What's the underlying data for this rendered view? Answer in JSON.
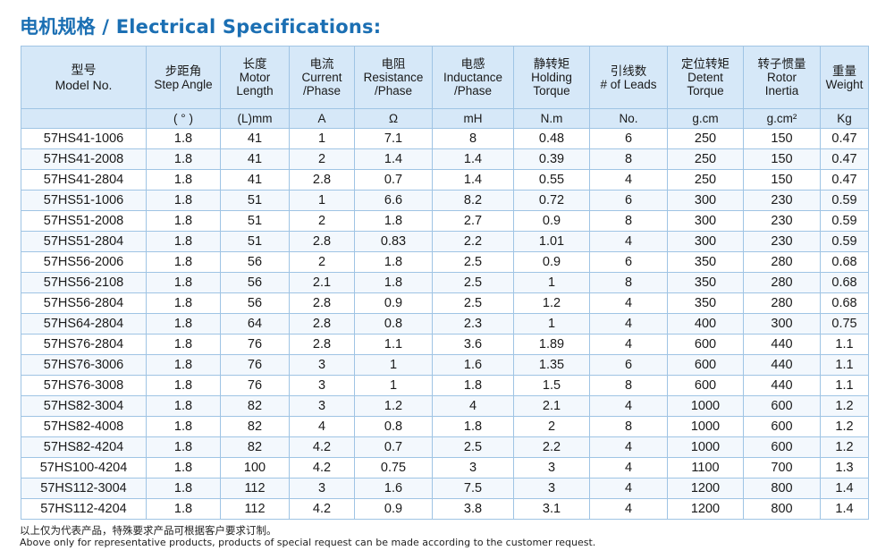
{
  "title": "电机规格 / Electrical Specifications:",
  "columns": [
    {
      "zh": "型号",
      "en1": "Model No.",
      "en2": "",
      "unit": ""
    },
    {
      "zh": "步距角",
      "en1": "Step Angle",
      "en2": "",
      "unit": "( ° )"
    },
    {
      "zh": "长度",
      "en1": "Motor",
      "en2": "Length",
      "unit": "(L)mm"
    },
    {
      "zh": "电流",
      "en1": "Current",
      "en2": "/Phase",
      "unit": "A"
    },
    {
      "zh": "电阻",
      "en1": "Resistance",
      "en2": "/Phase",
      "unit": "Ω"
    },
    {
      "zh": "电感",
      "en1": "Inductance",
      "en2": "/Phase",
      "unit": "mH"
    },
    {
      "zh": "静转矩",
      "en1": "Holding",
      "en2": "Torque",
      "unit": "N.m"
    },
    {
      "zh": "引线数",
      "en1": "# of Leads",
      "en2": "",
      "unit": "No."
    },
    {
      "zh": "定位转矩",
      "en1": "Detent",
      "en2": "Torque",
      "unit": "g.cm"
    },
    {
      "zh": "转子惯量",
      "en1": "Rotor",
      "en2": "Inertia",
      "unit": "g.cm²"
    },
    {
      "zh": "重量",
      "en1": "Weight",
      "en2": "",
      "unit": "Kg"
    }
  ],
  "rows": [
    [
      "57HS41-1006",
      "1.8",
      "41",
      "1",
      "7.1",
      "8",
      "0.48",
      "6",
      "250",
      "150",
      "0.47"
    ],
    [
      "57HS41-2008",
      "1.8",
      "41",
      "2",
      "1.4",
      "1.4",
      "0.39",
      "8",
      "250",
      "150",
      "0.47"
    ],
    [
      "57HS41-2804",
      "1.8",
      "41",
      "2.8",
      "0.7",
      "1.4",
      "0.55",
      "4",
      "250",
      "150",
      "0.47"
    ],
    [
      "57HS51-1006",
      "1.8",
      "51",
      "1",
      "6.6",
      "8.2",
      "0.72",
      "6",
      "300",
      "230",
      "0.59"
    ],
    [
      "57HS51-2008",
      "1.8",
      "51",
      "2",
      "1.8",
      "2.7",
      "0.9",
      "8",
      "300",
      "230",
      "0.59"
    ],
    [
      "57HS51-2804",
      "1.8",
      "51",
      "2.8",
      "0.83",
      "2.2",
      "1.01",
      "4",
      "300",
      "230",
      "0.59"
    ],
    [
      "57HS56-2006",
      "1.8",
      "56",
      "2",
      "1.8",
      "2.5",
      "0.9",
      "6",
      "350",
      "280",
      "0.68"
    ],
    [
      "57HS56-2108",
      "1.8",
      "56",
      "2.1",
      "1.8",
      "2.5",
      "1",
      "8",
      "350",
      "280",
      "0.68"
    ],
    [
      "57HS56-2804",
      "1.8",
      "56",
      "2.8",
      "0.9",
      "2.5",
      "1.2",
      "4",
      "350",
      "280",
      "0.68"
    ],
    [
      "57HS64-2804",
      "1.8",
      "64",
      "2.8",
      "0.8",
      "2.3",
      "1",
      "4",
      "400",
      "300",
      "0.75"
    ],
    [
      "57HS76-2804",
      "1.8",
      "76",
      "2.8",
      "1.1",
      "3.6",
      "1.89",
      "4",
      "600",
      "440",
      "1.1"
    ],
    [
      "57HS76-3006",
      "1.8",
      "76",
      "3",
      "1",
      "1.6",
      "1.35",
      "6",
      "600",
      "440",
      "1.1"
    ],
    [
      "57HS76-3008",
      "1.8",
      "76",
      "3",
      "1",
      "1.8",
      "1.5",
      "8",
      "600",
      "440",
      "1.1"
    ],
    [
      "57HS82-3004",
      "1.8",
      "82",
      "3",
      "1.2",
      "4",
      "2.1",
      "4",
      "1000",
      "600",
      "1.2"
    ],
    [
      "57HS82-4008",
      "1.8",
      "82",
      "4",
      "0.8",
      "1.8",
      "2",
      "8",
      "1000",
      "600",
      "1.2"
    ],
    [
      "57HS82-4204",
      "1.8",
      "82",
      "4.2",
      "0.7",
      "2.5",
      "2.2",
      "4",
      "1000",
      "600",
      "1.2"
    ],
    [
      "57HS100-4204",
      "1.8",
      "100",
      "4.2",
      "0.75",
      "3",
      "3",
      "4",
      "1100",
      "700",
      "1.3"
    ],
    [
      "57HS112-3004",
      "1.8",
      "112",
      "3",
      "1.6",
      "7.5",
      "3",
      "4",
      "1200",
      "800",
      "1.4"
    ],
    [
      "57HS112-4204",
      "1.8",
      "112",
      "4.2",
      "0.9",
      "3.8",
      "3.1",
      "4",
      "1200",
      "800",
      "1.4"
    ]
  ],
  "notes": {
    "zh": "以上仅为代表产品，特殊要求产品可根据客户要求订制。",
    "en": "Above only for representative products, products of special request can be made according to the customer request."
  }
}
